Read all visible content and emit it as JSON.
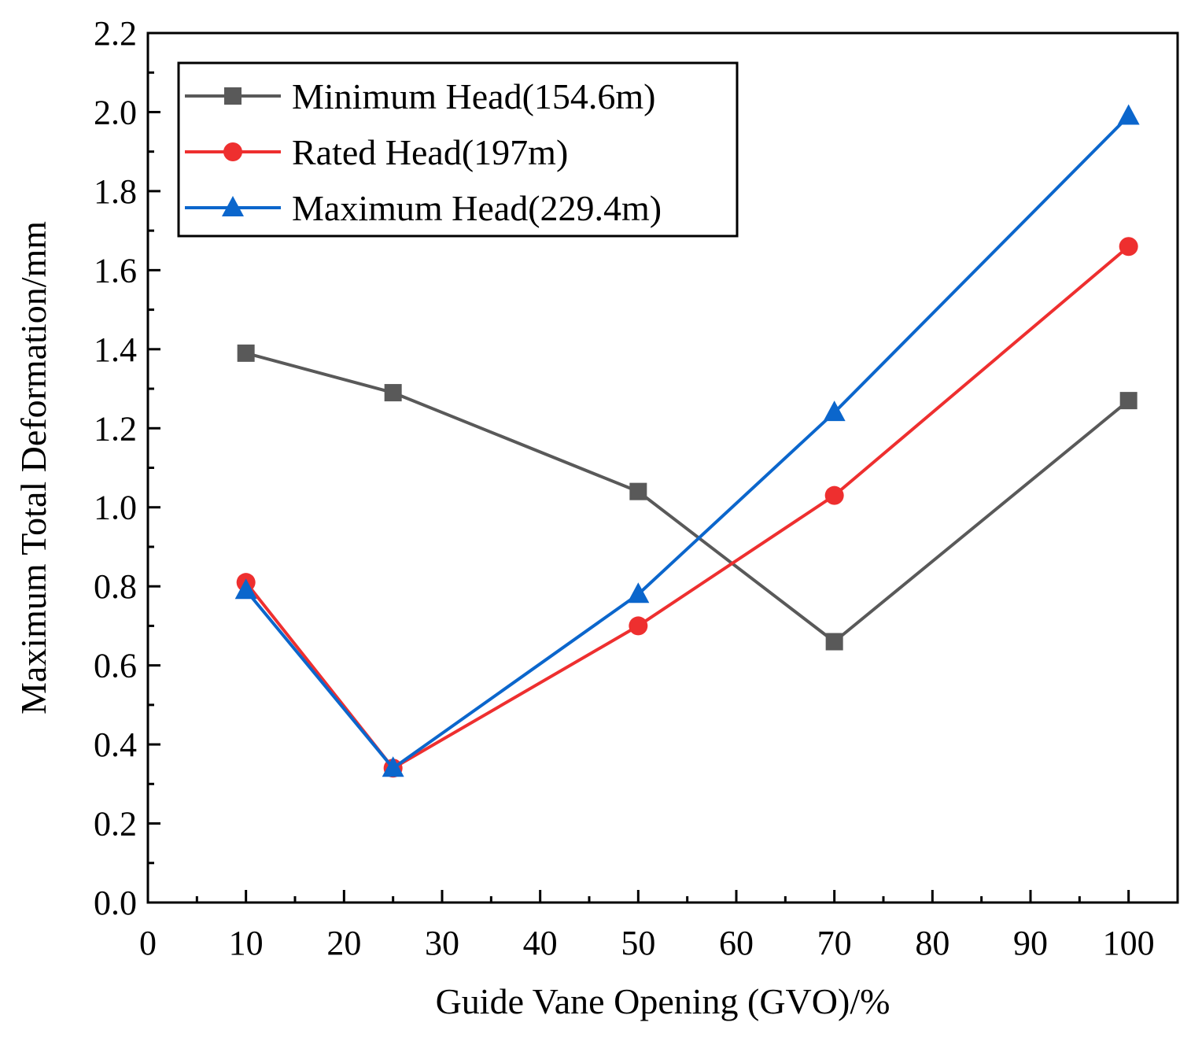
{
  "chart_data": {
    "type": "line",
    "title": "",
    "xlabel": "Guide Vane Opening (GVO)/%",
    "ylabel": "Maximum Total Deformation/mm",
    "xlim": [
      0,
      105
    ],
    "ylim": [
      0,
      2.2
    ],
    "xticks": [
      0,
      10,
      20,
      30,
      40,
      50,
      60,
      70,
      80,
      90,
      100
    ],
    "yticks": [
      0.0,
      0.2,
      0.4,
      0.6,
      0.8,
      1.0,
      1.2,
      1.4,
      1.6,
      1.8,
      2.0,
      2.2
    ],
    "x_tick_labels": [
      "0",
      "10",
      "20",
      "30",
      "40",
      "50",
      "60",
      "70",
      "80",
      "90",
      "100"
    ],
    "y_tick_labels": [
      "0.0",
      "0.2",
      "0.4",
      "0.6",
      "0.8",
      "1.0",
      "1.2",
      "1.4",
      "1.6",
      "1.8",
      "2.0",
      "2.2"
    ],
    "grid": false,
    "legend_position": "top-left",
    "x": [
      10,
      25,
      50,
      70,
      100
    ],
    "series": [
      {
        "name": "Minimum Head(154.6m)",
        "values": [
          1.39,
          1.29,
          1.04,
          0.66,
          1.27
        ],
        "color": "#595959",
        "marker": "square"
      },
      {
        "name": "Rated Head(197m)",
        "values": [
          0.81,
          0.34,
          0.7,
          1.03,
          1.66
        ],
        "color": "#ee2f2f",
        "marker": "circle"
      },
      {
        "name": "Maximum Head(229.4m)",
        "values": [
          0.79,
          0.34,
          0.78,
          1.24,
          1.99
        ],
        "color": "#0b66cc",
        "marker": "triangle"
      }
    ]
  }
}
